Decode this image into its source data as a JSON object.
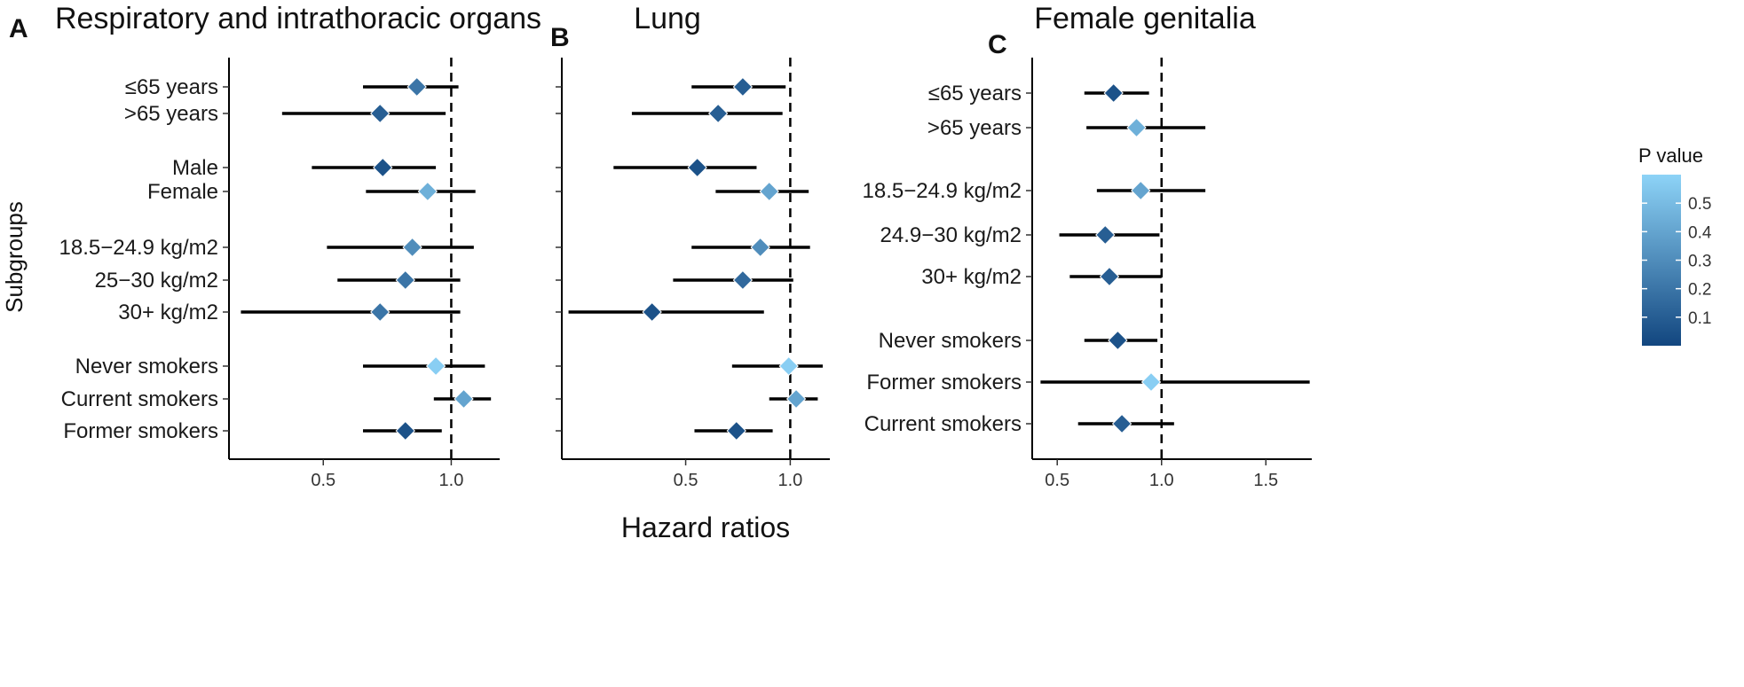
{
  "figure": {
    "shared_xlabel": "Hazard ratios",
    "shared_ylabel": "Subgroups"
  },
  "legend": {
    "title": "P value",
    "ticks": [
      "0.5",
      "0.4",
      "0.3",
      "0.2",
      "0.1"
    ],
    "tick_values": [
      0.5,
      0.4,
      0.3,
      0.2,
      0.1
    ],
    "range": [
      0.0,
      0.6
    ],
    "color_low_p": "#12467f",
    "color_high_p": "#8dd3f7"
  },
  "chart_data": [
    {
      "type": "forest",
      "letter": "A",
      "title": "Respiratory and intrathoracic organs",
      "xlabel": "",
      "ylabel": "Subgroups",
      "x_scale": "log",
      "xlim": [
        0.3,
        1.3
      ],
      "xticks": [
        0.5,
        1.0
      ],
      "xtick_labels": [
        "0.5",
        "1.0"
      ],
      "reference_line": 1.0,
      "rows": [
        {
          "label": "≤65 years",
          "hr": 0.83,
          "lo": 0.62,
          "hi": 1.04,
          "p": 0.2
        },
        {
          "label": ">65 years",
          "hr": 0.68,
          "lo": 0.4,
          "hi": 0.97,
          "p": 0.1
        },
        {
          "label": "Male",
          "hr": 0.69,
          "lo": 0.47,
          "hi": 0.92,
          "p": 0.05
        },
        {
          "label": "Female",
          "hr": 0.88,
          "lo": 0.63,
          "hi": 1.14,
          "p": 0.45
        },
        {
          "label": "18.5−24.9 kg/m2",
          "hr": 0.81,
          "lo": 0.51,
          "hi": 1.13,
          "p": 0.3
        },
        {
          "label": "25−30 kg/m2",
          "hr": 0.78,
          "lo": 0.54,
          "hi": 1.05,
          "p": 0.2
        },
        {
          "label": "30+ kg/m2",
          "hr": 0.68,
          "lo": 0.32,
          "hi": 1.05,
          "p": 0.2
        },
        {
          "label": "Never smokers",
          "hr": 0.92,
          "lo": 0.62,
          "hi": 1.2,
          "p": 0.58
        },
        {
          "label": "Current smokers",
          "hr": 1.07,
          "lo": 0.91,
          "hi": 1.24,
          "p": 0.4
        },
        {
          "label": "Former smokers",
          "hr": 0.78,
          "lo": 0.62,
          "hi": 0.95,
          "p": 0.05
        }
      ]
    },
    {
      "type": "forest",
      "letter": "B",
      "title": "Lung",
      "xlabel": "",
      "ylabel": "",
      "x_scale": "log",
      "xlim": [
        0.22,
        1.3
      ],
      "xticks": [
        0.5,
        1.0
      ],
      "xtick_labels": [
        "0.5",
        "1.0"
      ],
      "reference_line": 1.0,
      "rows": [
        {
          "label": "≤65 years",
          "hr": 0.73,
          "lo": 0.52,
          "hi": 0.97,
          "p": 0.1
        },
        {
          "label": ">65 years",
          "hr": 0.62,
          "lo": 0.35,
          "hi": 0.95,
          "p": 0.1
        },
        {
          "label": "Male",
          "hr": 0.54,
          "lo": 0.31,
          "hi": 0.8,
          "p": 0.05
        },
        {
          "label": "Female",
          "hr": 0.87,
          "lo": 0.61,
          "hi": 1.13,
          "p": 0.4
        },
        {
          "label": "18.5−24.9 kg/m2",
          "hr": 0.82,
          "lo": 0.52,
          "hi": 1.14,
          "p": 0.3
        },
        {
          "label": "25−30 kg/m2",
          "hr": 0.73,
          "lo": 0.46,
          "hi": 1.02,
          "p": 0.15
        },
        {
          "label": "30+ kg/m2",
          "hr": 0.4,
          "lo": 0.23,
          "hi": 0.84,
          "p": 0.05
        },
        {
          "label": "Never smokers",
          "hr": 0.99,
          "lo": 0.68,
          "hi": 1.24,
          "p": 0.58
        },
        {
          "label": "Current smokers",
          "hr": 1.04,
          "lo": 0.87,
          "hi": 1.2,
          "p": 0.4
        },
        {
          "label": "Former smokers",
          "hr": 0.7,
          "lo": 0.53,
          "hi": 0.89,
          "p": 0.05
        }
      ]
    },
    {
      "type": "forest",
      "letter": "C",
      "title": "Female genitalia",
      "xlabel": "",
      "ylabel": "",
      "x_scale": "linear",
      "xlim": [
        0.38,
        1.72
      ],
      "xticks": [
        0.5,
        1.0,
        1.5
      ],
      "xtick_labels": [
        "0.5",
        "1.0",
        "1.5"
      ],
      "reference_line": 1.0,
      "rows": [
        {
          "label": "≤65 years",
          "hr": 0.77,
          "lo": 0.63,
          "hi": 0.94,
          "p": 0.05
        },
        {
          "label": ">65 years",
          "hr": 0.88,
          "lo": 0.64,
          "hi": 1.21,
          "p": 0.45
        },
        {
          "label": "18.5−24.9 kg/m2",
          "hr": 0.9,
          "lo": 0.69,
          "hi": 1.21,
          "p": 0.4
        },
        {
          "label": "24.9−30 kg/m2",
          "hr": 0.73,
          "lo": 0.51,
          "hi": 0.99,
          "p": 0.1
        },
        {
          "label": "30+ kg/m2",
          "hr": 0.75,
          "lo": 0.56,
          "hi": 1.0,
          "p": 0.1
        },
        {
          "label": "Never smokers",
          "hr": 0.79,
          "lo": 0.63,
          "hi": 0.98,
          "p": 0.05
        },
        {
          "label": "Former smokers",
          "hr": 0.95,
          "lo": 0.42,
          "hi": 1.71,
          "p": 0.58
        },
        {
          "label": "Current smokers",
          "hr": 0.81,
          "lo": 0.6,
          "hi": 1.06,
          "p": 0.1
        }
      ]
    }
  ]
}
